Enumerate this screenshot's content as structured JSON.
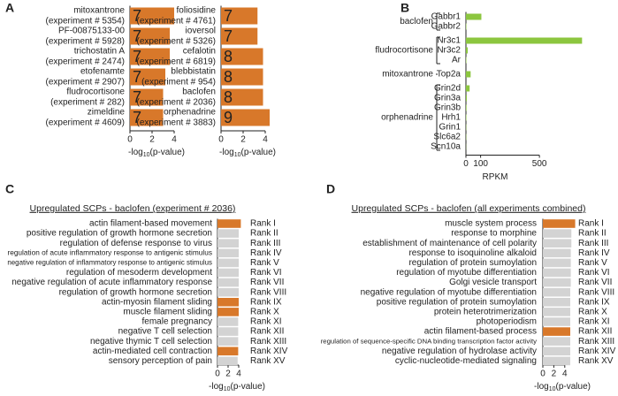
{
  "chart_data": [
    {
      "type": "hbar",
      "panel": "A",
      "categories": [
        [
          "mitoxantrone",
          "(experiment # 5354)"
        ],
        [
          "PF-00875133-00",
          "(experiment # 5928)"
        ],
        [
          "trichostatin A",
          "(experiment # 2474)"
        ],
        [
          "etofenamte",
          "(experiment # 2907)"
        ],
        [
          "fludrocortisone",
          "(experiment # 282)"
        ],
        [
          "zimeldine",
          "(experiment # 4609)"
        ]
      ],
      "values": [
        4.0,
        3.6,
        3.6,
        3.2,
        3.0,
        3.0
      ],
      "bar_numbers": [
        7,
        7,
        7,
        7,
        7,
        7
      ],
      "color": "#d8782a",
      "xlim": [
        0,
        5
      ],
      "xticks": [
        0,
        2,
        4
      ],
      "x_label": [
        "-log",
        "10",
        "(p-value)"
      ]
    },
    {
      "type": "hbar",
      "categories": [
        [
          "foliosidine",
          "(experiment # 4761)"
        ],
        [
          "ioversol",
          "(experiment # 5326)"
        ],
        [
          "cefalotin",
          "(experiment # 6819)"
        ],
        [
          "blebbistatin",
          "(experiment # 954)"
        ],
        [
          "baclofen",
          "(experiment # 2036)"
        ],
        [
          "orphenadrine",
          "(experiment # 3883)"
        ]
      ],
      "values": [
        3.3,
        3.3,
        3.8,
        3.8,
        3.8,
        4.4
      ],
      "bar_numbers": [
        7,
        7,
        8,
        8,
        8,
        9
      ],
      "color": "#d8782a",
      "xlim": [
        0,
        5
      ],
      "xticks": [
        0,
        2,
        4
      ],
      "x_label": [
        "-log",
        "10",
        "(p-value)"
      ]
    },
    {
      "type": "grouped_hbar",
      "panel": "B",
      "groups": [
        {
          "name": "baclofen",
          "categories": [
            "Gabbr1",
            "Gabbr2"
          ],
          "values": [
            105,
            3
          ]
        },
        {
          "name": "fludrocortisone",
          "categories": [
            "Nr3c1",
            "Nr3c2",
            "Ar"
          ],
          "values": [
            790,
            12,
            3
          ]
        },
        {
          "name": "mitoxantrone",
          "categories": [
            "Top2a"
          ],
          "values": [
            32
          ]
        },
        {
          "name": "orphenadrine",
          "categories": [
            "Grin2d",
            "Grin3a",
            "Grin3b",
            "Hrh1",
            "Grin1",
            "Slc6a2",
            "Scn10a"
          ],
          "values": [
            25,
            6,
            4,
            3,
            2,
            2,
            1
          ]
        }
      ],
      "color": "#8cc63f",
      "xlim": [
        0,
        800
      ],
      "xticks": [
        0,
        100,
        500
      ],
      "x_label": "RPKM"
    },
    {
      "type": "ranked_hbar",
      "panel": "C",
      "title": "Upregulated SCPs - baclofen (experiment # 2036)",
      "categories": [
        "actin filament-based movement",
        "positive regulation of growth hormone secretion",
        "regulation of defense response to virus",
        "regulation of acute inflammatory response to antigenic stimulus",
        "negative regulation of inflammatory response to antigenic stimulus",
        "regulation of mesoderm development",
        "negative regulation of acute inflammatory response",
        "regulation of growth hormone secretion",
        "actin-myosin filament sliding",
        "muscle filament sliding",
        "female pregnancy",
        "negative T cell selection",
        "negative thymic T cell selection",
        "actin-mediated cell contraction",
        "sensory perception of pain"
      ],
      "values": [
        4.4,
        4.0,
        4.0,
        4.0,
        4.0,
        4.0,
        4.0,
        4.0,
        4.0,
        4.0,
        3.9,
        3.9,
        3.9,
        3.9,
        3.8
      ],
      "highlight": [
        true,
        false,
        false,
        false,
        false,
        false,
        false,
        false,
        true,
        true,
        false,
        false,
        false,
        true,
        false
      ],
      "ranks": [
        "Rank I",
        "Rank II",
        "Rank III",
        "Rank IV",
        "Rank V",
        "Rank VI",
        "Rank VII",
        "Rank VIII",
        "Rank IX",
        "Rank X",
        "Rank XI",
        "Rank XII",
        "Rank XIII",
        "Rank XIV",
        "Rank XV"
      ],
      "color": "#d3d3d3",
      "highlight_color": "#d8782a",
      "xlim": [
        0,
        5
      ],
      "xticks": [
        0,
        2,
        4
      ],
      "x_label": [
        "-log",
        "10",
        "(p-value)"
      ]
    },
    {
      "type": "ranked_hbar",
      "panel": "D",
      "title": "Upregulated SCPs - baclofen (all experiments combined)",
      "categories": [
        "muscle system process",
        "response to morphine",
        "establishment of maintenance of cell polarity",
        "response to isoquinoline alkaloid",
        "regulation of protein sumoylation",
        "regulation of myotube differentiation",
        "Golgi vesicle transport",
        "negative regulation of myotube differentiation",
        "positive regulation of protein sumoylation",
        "protein heterotrimerization",
        "photoperiodism",
        "actin filament-based process",
        "regulation of sequence-specific DNA binding transcription factor activity",
        "negative regulation of hydrolase activity",
        "cyclic-nucleotide-mediated signaling"
      ],
      "values": [
        5.9,
        5.2,
        5.2,
        5.1,
        5.1,
        5.1,
        5.1,
        5.0,
        5.0,
        5.0,
        5.0,
        5.0,
        5.0,
        5.0,
        5.0
      ],
      "highlight": [
        true,
        false,
        false,
        false,
        false,
        false,
        false,
        false,
        false,
        false,
        false,
        true,
        false,
        false,
        false
      ],
      "ranks": [
        "Rank I",
        "Rank II",
        "Rank III",
        "Rank IV",
        "Rank V",
        "Rank VI",
        "Rank VII",
        "Rank VIII",
        "Rank IX",
        "Rank X",
        "Rank XI",
        "Rank XII",
        "Rank XIII",
        "Rank XIV",
        "Rank XV"
      ],
      "color": "#d3d3d3",
      "highlight_color": "#d8782a",
      "xlim": [
        0,
        6
      ],
      "xticks": [
        0,
        2,
        4
      ],
      "x_label": [
        "-log",
        "10",
        "(p-value)"
      ]
    }
  ]
}
